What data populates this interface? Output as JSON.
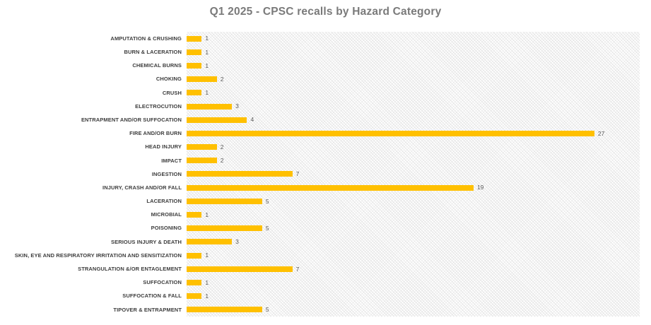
{
  "title": "Q1 2025 - CPSC recalls by Hazard Category",
  "colors": {
    "bar": "#FFC000",
    "title_text": "#7A7A7A",
    "category_label": "#3D3D3D",
    "value_label": "#595959",
    "background": "#FFFFFF"
  },
  "chart_data": {
    "type": "bar",
    "orientation": "horizontal",
    "title": "Q1 2025 - CPSC recalls by Hazard Category",
    "categories": [
      "AMPUTATION & CRUSHING",
      "BURN & LACERATION",
      "CHEMICAL BURNS",
      "CHOKING",
      "CRUSH",
      "ELECTROCUTION",
      "ENTRAPMENT AND/OR SUFFOCATION",
      "FIRE AND/OR BURN",
      "HEAD INJURY",
      "IMPACT",
      "INGESTION",
      "INJURY, CRASH AND/OR FALL",
      "LACERATION",
      "MICROBIAL",
      "POISONING",
      "SERIOUS INJURY & DEATH",
      "SKIN, EYE AND RESPIRATORY IRRITATION AND SENSITIZATION",
      "STRANGULATION &/OR ENTAGLEMENT",
      "SUFFOCATION",
      "SUFFOCATION & FALL",
      "TIPOVER & ENTRAPMENT"
    ],
    "values": [
      1,
      1,
      1,
      2,
      1,
      3,
      4,
      27,
      2,
      2,
      7,
      19,
      5,
      1,
      5,
      3,
      1,
      7,
      1,
      1,
      5
    ],
    "xlim": [
      0,
      30
    ],
    "xlabel": "",
    "ylabel": "",
    "grid": false,
    "legend": false,
    "data_labels_shown": true,
    "bar_color": "#FFC000"
  }
}
